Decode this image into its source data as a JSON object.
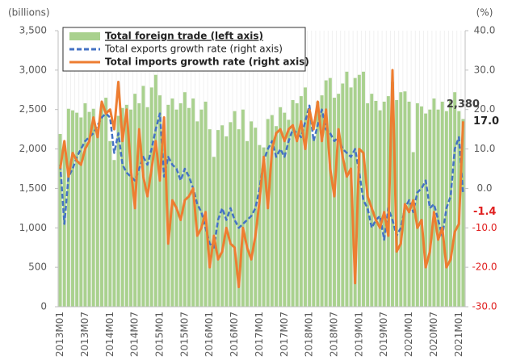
{
  "chart_data": {
    "type": "combo",
    "y_axis_label": "(billions)",
    "y2_axis_label": "(%)",
    "categories": [
      "2013M01",
      null,
      null,
      null,
      null,
      null,
      "2013M07",
      null,
      null,
      null,
      null,
      null,
      "2014M01",
      null,
      null,
      null,
      null,
      null,
      "2014M07",
      null,
      null,
      null,
      null,
      null,
      "2015M01",
      null,
      null,
      null,
      null,
      null,
      "2015M07",
      null,
      null,
      null,
      null,
      null,
      "2016M01",
      null,
      null,
      null,
      null,
      null,
      "2016M07",
      null,
      null,
      null,
      null,
      null,
      "2017M01",
      null,
      null,
      null,
      null,
      null,
      "2017M07",
      null,
      null,
      null,
      null,
      null,
      "2018M01",
      null,
      null,
      null,
      null,
      null,
      "2018M07",
      null,
      null,
      null,
      null,
      null,
      "2019M01",
      null,
      null,
      null,
      null,
      null,
      "2019M07",
      null,
      null,
      null,
      null,
      null,
      "2020M01",
      null,
      null,
      null,
      null,
      null,
      "2020M07",
      null,
      null,
      null,
      null,
      null,
      "2021M01",
      null
    ],
    "ylim": [
      0,
      3500
    ],
    "yticks": [
      0,
      500,
      {
        "value": 1000,
        "label": "1,000"
      },
      {
        "value": 1500,
        "label": "1,500"
      },
      {
        "value": 2000,
        "label": "2,000"
      },
      {
        "value": 2500,
        "label": "2,500"
      },
      {
        "value": 3000,
        "label": "3,000"
      },
      {
        "value": 3500,
        "label": "3,500"
      }
    ],
    "y2lim": [
      -30,
      40
    ],
    "y2ticks": [
      {
        "value": -30,
        "label": "-30.0"
      },
      {
        "value": -20,
        "label": "-20.0"
      },
      {
        "value": -10,
        "label": "-10.0"
      },
      {
        "value": 0,
        "label": "0.0"
      },
      {
        "value": 10,
        "label": "10.0"
      },
      {
        "value": 20,
        "label": "20.0"
      },
      {
        "value": 30,
        "label": "30.0"
      },
      {
        "value": 40,
        "label": "40.0"
      }
    ],
    "series": [
      {
        "name": "Total foreign trade (left axis)",
        "type": "bar",
        "color": "#a9d18e",
        "values": [
          2190,
          1980,
          2510,
          2490,
          2460,
          2400,
          2580,
          2470,
          2510,
          2230,
          2540,
          2650,
          2100,
          1860,
          2420,
          2520,
          2560,
          2500,
          2700,
          2580,
          2800,
          2530,
          2780,
          2940,
          2680,
          2190,
          2560,
          2640,
          2500,
          2580,
          2720,
          2520,
          2640,
          2350,
          2500,
          2600,
          2250,
          1900,
          2240,
          2300,
          2160,
          2340,
          2480,
          2250,
          2500,
          2100,
          2350,
          2270,
          2050,
          2020,
          2380,
          2430,
          2290,
          2530,
          2460,
          2370,
          2620,
          2580,
          2670,
          2780,
          2460,
          2130,
          2600,
          2680,
          2870,
          2900,
          2650,
          2700,
          2830,
          2980,
          2780,
          2900,
          2940,
          2980,
          2580,
          2700,
          2610,
          2490,
          2600,
          2670,
          2850,
          2620,
          2720,
          2730,
          2600,
          1960,
          2580,
          2540,
          2450,
          2500,
          2640,
          2500,
          2600,
          2480,
          2610,
          2720,
          2480,
          2380
        ],
        "value_labels": [
          null,
          null,
          null,
          null,
          null,
          null,
          null,
          null,
          null,
          null,
          null,
          null,
          null,
          null,
          null,
          null,
          null,
          null,
          null,
          null,
          null,
          null,
          null,
          null,
          null,
          null,
          null,
          null,
          null,
          null,
          null,
          null,
          null,
          null,
          null,
          null,
          null,
          null,
          null,
          null,
          null,
          null,
          null,
          null,
          null,
          null,
          null,
          null,
          null,
          null,
          null,
          null,
          null,
          null,
          null,
          null,
          null,
          null,
          null,
          null,
          null,
          null,
          null,
          null,
          null,
          null,
          null,
          null,
          null,
          null,
          null,
          null,
          null,
          null,
          null,
          null,
          null,
          null,
          null,
          null,
          null,
          null,
          null,
          null,
          null,
          null,
          null,
          null,
          null,
          null,
          null,
          null,
          null,
          null,
          null,
          null,
          null,
          "2,380"
        ]
      },
      {
        "name": "Total exports growth rate (right axis)",
        "type": "line",
        "axis": "y2",
        "color": "#4472c4",
        "dashed": true,
        "values": [
          6,
          -9,
          3,
          5,
          8,
          10,
          12,
          13,
          14,
          16,
          18,
          19,
          18,
          9,
          14,
          6,
          4,
          3,
          2,
          5,
          8,
          6,
          10,
          15,
          19,
          3,
          8,
          6,
          5,
          2,
          5,
          3,
          0,
          -4,
          -6,
          -10,
          -14,
          -15,
          -8,
          -5,
          -8,
          -5,
          -8,
          -10,
          -9,
          -8,
          -7,
          -5,
          0,
          7,
          10,
          12,
          8,
          10,
          8,
          12,
          15,
          14,
          13,
          17,
          21,
          12,
          16,
          20,
          15,
          14,
          12,
          13,
          10,
          9,
          8,
          10,
          4,
          -3,
          -5,
          -10,
          -8,
          -7,
          -13,
          -5,
          -8,
          -12,
          -10,
          -5,
          -3,
          -6,
          -1,
          0,
          2,
          -5,
          -4,
          -8,
          -12,
          -5,
          -2,
          10,
          13,
          -1.4
        ],
        "value_labels": [
          null,
          null,
          null,
          null,
          null,
          null,
          null,
          null,
          null,
          null,
          null,
          null,
          null,
          null,
          null,
          null,
          null,
          null,
          null,
          null,
          null,
          null,
          null,
          null,
          null,
          null,
          null,
          null,
          null,
          null,
          null,
          null,
          null,
          null,
          null,
          null,
          null,
          null,
          null,
          null,
          null,
          null,
          null,
          null,
          null,
          null,
          null,
          null,
          null,
          null,
          null,
          null,
          null,
          null,
          null,
          null,
          null,
          null,
          null,
          null,
          null,
          null,
          null,
          null,
          null,
          null,
          null,
          null,
          null,
          null,
          null,
          null,
          null,
          null,
          null,
          null,
          null,
          null,
          null,
          null,
          null,
          null,
          null,
          null,
          null,
          null,
          null,
          null,
          null,
          null,
          null,
          null,
          null,
          null,
          null,
          null,
          null,
          "-1.4"
        ]
      },
      {
        "name": "Total imports growth rate (right axis)",
        "type": "line",
        "axis": "y2",
        "color": "#ed7d31",
        "values": [
          5,
          12,
          3,
          9,
          7,
          6,
          10,
          12,
          18,
          13,
          22,
          19,
          20,
          15,
          27,
          12,
          20,
          5,
          -5,
          15,
          3,
          -2,
          5,
          12,
          2,
          18,
          -14,
          -3,
          -5,
          -8,
          -3,
          -2,
          0,
          -12,
          -10,
          -6,
          -20,
          -12,
          -18,
          -16,
          -10,
          -14,
          -15,
          -25,
          -10,
          -15,
          -18,
          -12,
          -3,
          8,
          -5,
          10,
          14,
          15,
          12,
          15,
          16,
          12,
          17,
          10,
          20,
          15,
          22,
          12,
          20,
          5,
          -2,
          15,
          8,
          3,
          5,
          -24,
          10,
          9,
          -2,
          -5,
          -8,
          -10,
          -6,
          -12,
          30,
          -16,
          -14,
          -4,
          -6,
          -3,
          -10,
          -8,
          -20,
          -16,
          -6,
          -13,
          -10,
          -20,
          -18,
          -11,
          -9,
          17
        ],
        "value_labels": [
          null,
          null,
          null,
          null,
          null,
          null,
          null,
          null,
          null,
          null,
          null,
          null,
          null,
          null,
          null,
          null,
          null,
          null,
          null,
          null,
          null,
          null,
          null,
          null,
          null,
          null,
          null,
          null,
          null,
          null,
          null,
          null,
          null,
          null,
          null,
          null,
          null,
          null,
          null,
          null,
          null,
          null,
          null,
          null,
          null,
          null,
          null,
          null,
          null,
          null,
          null,
          null,
          null,
          null,
          null,
          null,
          null,
          null,
          null,
          null,
          null,
          null,
          null,
          null,
          null,
          null,
          null,
          null,
          null,
          null,
          null,
          null,
          null,
          null,
          null,
          null,
          null,
          null,
          null,
          null,
          null,
          null,
          null,
          null,
          null,
          null,
          null,
          null,
          null,
          null,
          null,
          null,
          null,
          null,
          null,
          null,
          null,
          "17.0"
        ]
      }
    ]
  }
}
